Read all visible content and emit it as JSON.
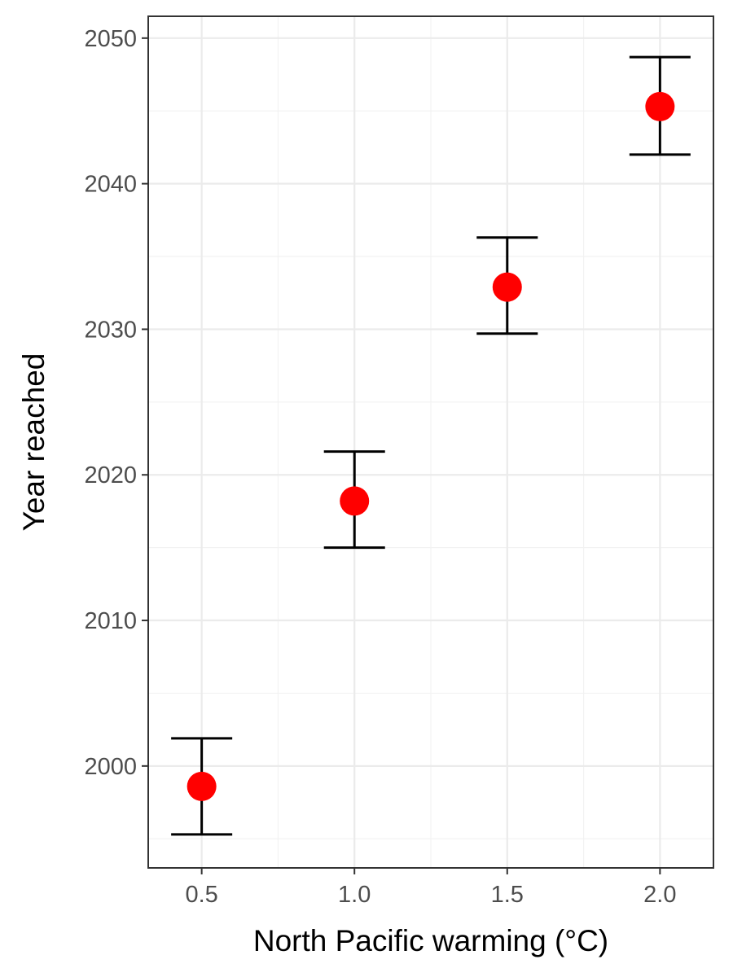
{
  "chart_data": {
    "type": "scatter",
    "title": "",
    "xlabel": "North Pacific warming (°C)",
    "ylabel": "Year reached",
    "x": [
      0.5,
      1.0,
      1.5,
      2.0
    ],
    "y": [
      1998.6,
      2018.2,
      2032.9,
      2045.3
    ],
    "y_lower": [
      1995.3,
      2015.0,
      2029.7,
      2042.0
    ],
    "y_upper": [
      2001.9,
      2021.6,
      2036.3,
      2048.7
    ],
    "xlim": [
      0.325,
      2.175
    ],
    "ylim": [
      1993.0,
      2051.5
    ],
    "x_ticks": [
      0.5,
      1.0,
      1.5,
      2.0
    ],
    "x_tick_labels": [
      "0.5",
      "1.0",
      "1.5",
      "2.0"
    ],
    "y_ticks": [
      2000,
      2010,
      2020,
      2030,
      2040,
      2050
    ],
    "y_tick_labels": [
      "2000",
      "2010",
      "2020",
      "2030",
      "2040",
      "2050"
    ],
    "point_color": "#ff0000",
    "errorbar_color": "#000000",
    "grid": true,
    "legend": "none"
  }
}
